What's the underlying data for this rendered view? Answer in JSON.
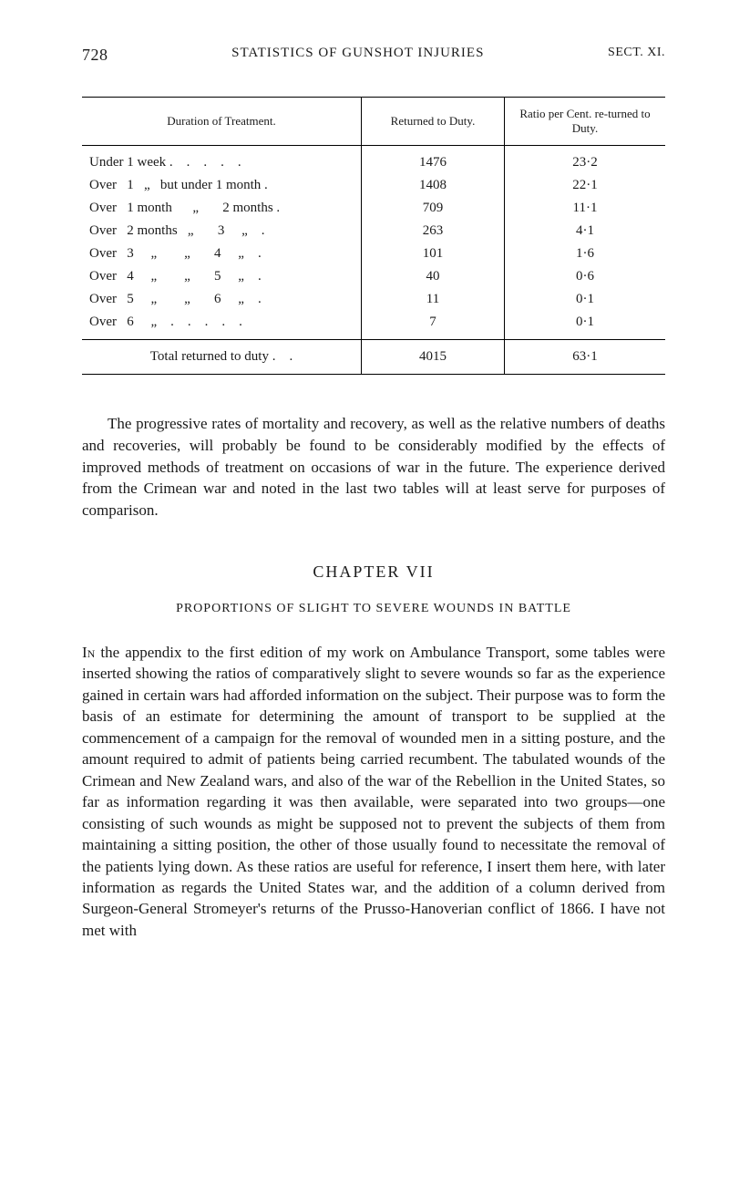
{
  "header": {
    "page_number": "728",
    "running_title": "STATISTICS OF GUNSHOT INJURIES",
    "section_label": "SECT. XI."
  },
  "table": {
    "type": "table",
    "columns": [
      "Duration of Treatment.",
      "Returned to Duty.",
      "Ratio per Cent. re-turned to Duty."
    ],
    "header_fontsize": 13,
    "cell_fontsize": 15,
    "border_color": "#000000",
    "rows": [
      [
        "Under 1 week .    .    .    .    .",
        "1476",
        "23·2"
      ],
      [
        "Over   1   „   but under 1 month .",
        "1408",
        "22·1"
      ],
      [
        "Over   1 month      „       2 months .",
        "709",
        "11·1"
      ],
      [
        "Over   2 months   „       3     „    .",
        "263",
        "4·1"
      ],
      [
        "Over   3     „        „       4     „    .",
        "101",
        "1·6"
      ],
      [
        "Over   4     „        „       5     „    .",
        "40",
        "0·6"
      ],
      [
        "Over   5     „        „       6     „    .",
        "11",
        "0·1"
      ],
      [
        "Over   6     „    .    .    .    .    .",
        "7",
        "0·1"
      ]
    ],
    "total_row": [
      "Total returned to duty .    .",
      "4015",
      "63·1"
    ]
  },
  "paragraph1": "The progressive rates of mortality and recovery, as well as the relative numbers of deaths and recoveries, will probably be found to be considerably modified by the effects of improved methods of treatment on occasions of war in the future. The experience derived from the Crimean war and noted in the last two tables will at least serve for purposes of comparison.",
  "chapter": {
    "title": "CHAPTER VII",
    "subtitle": "PROPORTIONS OF SLIGHT TO SEVERE WOUNDS IN BATTLE"
  },
  "paragraph2_lead": "In",
  "paragraph2_rest": " the appendix to the first edition of my work on Ambulance Transport, some tables were inserted showing the ratios of comparatively slight to severe wounds so far as the experience gained in certain wars had afforded information on the subject. Their purpose was to form the basis of an estimate for determining the amount of transport to be supplied at the commencement of a campaign for the removal of wounded men in a sitting posture, and the amount required to admit of patients being carried recumbent. The tabulated wounds of the Crimean and New Zealand wars, and also of the war of the Rebellion in the United States, so far as information regarding it was then available, were separated into two groups—one consisting of such wounds as might be supposed not to prevent the subjects of them from maintaining a sitting position, the other of those usually found to necessitate the removal of the patients lying down. As these ratios are useful for reference, I insert them here, with later information as regards the United States war, and the addition of a column derived from Surgeon-General Stromeyer's returns of the Prusso-Hanoverian conflict of 1866. I have not met with"
}
